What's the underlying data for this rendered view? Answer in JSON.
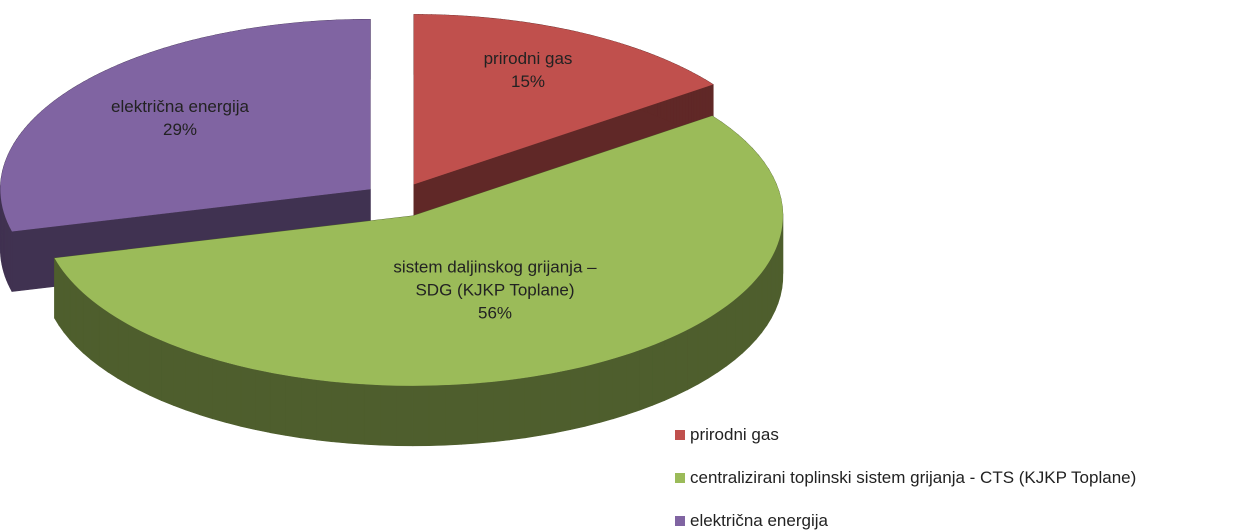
{
  "chart_data": {
    "type": "pie",
    "categories": [
      "prirodni gas",
      "centralizirani toplinski sistem grijanja - CTS (KJKP Toplane)",
      "električna energija"
    ],
    "values": [
      15,
      56,
      29
    ],
    "value_labels": [
      "15%",
      "56%",
      "29%"
    ],
    "data_labels": [
      "prirodni gas",
      "sistem daljinskog grijanja – SDG (KJKP Toplane)",
      "električna energija"
    ],
    "colors": [
      "#c0504d",
      "#9bbb59",
      "#8064a2"
    ],
    "legend": "bottom-right"
  }
}
